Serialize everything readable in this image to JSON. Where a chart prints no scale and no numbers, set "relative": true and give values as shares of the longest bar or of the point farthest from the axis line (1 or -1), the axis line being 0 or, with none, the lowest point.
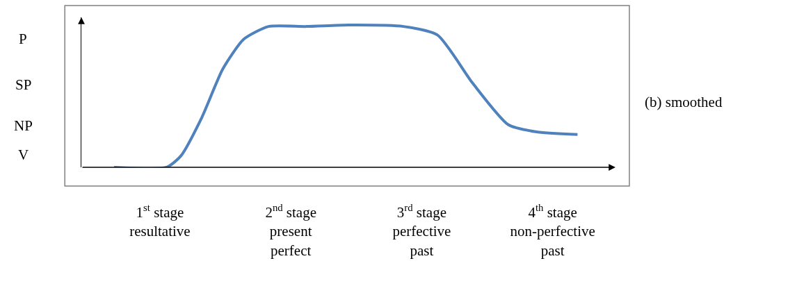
{
  "chart_data": {
    "type": "line",
    "relative": true,
    "annotations": [
      "(b) smoothed",
      "P",
      "SP",
      "NP",
      "V"
    ],
    "x": [
      0.65,
      1.05,
      1.16,
      1.32,
      1.48,
      1.64,
      1.83,
      2.12,
      2.44,
      2.86,
      3.12,
      3.39,
      3.66,
      3.87,
      4.19
    ],
    "series": [
      {
        "color": "#4f81bd",
        "values": [
          0,
          0,
          0.08,
          0.35,
          0.69,
          0.9,
          0.99,
          0.99,
          1,
          0.99,
          0.93,
          0.59,
          0.3,
          0.25,
          0.23
        ]
      }
    ],
    "xlim": [
      0.4,
      4.48
    ],
    "xticks": [
      {
        "value": 1,
        "label": "1$^{st}$ stage\nresultative"
      },
      {
        "value": 2,
        "label": "2$^{nd}$ stage\npresent\nperfect"
      },
      {
        "value": 3,
        "label": "3$^{rd}$ stage\nperfective\npast"
      },
      {
        "value": 4,
        "label": "4$^{th}$ stage\nnon-perfective\npast"
      }
    ],
    "marker": "none",
    "line_style": "solid"
  }
}
